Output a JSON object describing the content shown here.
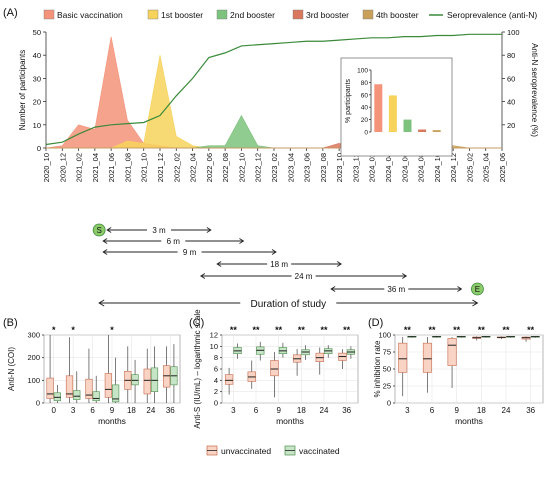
{
  "chart_data": [
    {
      "panel": "(A)",
      "type": "area",
      "legend": [
        {
          "name": "Basic vaccination",
          "color": "#F4937A"
        },
        {
          "name": "1st booster",
          "color": "#F7D35C"
        },
        {
          "name": "2nd booster",
          "color": "#7DC27D"
        },
        {
          "name": "3rd booster",
          "color": "#D9785E"
        },
        {
          "name": "4th booster",
          "color": "#C8A05A"
        },
        {
          "name": "Seroprevalence (anti-N)",
          "color": "#3A8A3A"
        }
      ],
      "ylabel": "Number of participants",
      "y2label": "Anti-N seroprevalence (%)",
      "ylim": [
        0,
        50
      ],
      "y2lim": [
        0,
        100
      ],
      "yticks": [
        "0",
        "10",
        "20",
        "30",
        "40",
        "50"
      ],
      "y2ticks": [
        "20",
        "40",
        "60",
        "80",
        "100"
      ],
      "x": [
        "2020_10",
        "2020_12",
        "2021_02",
        "2021_04",
        "2021_06",
        "2021_08",
        "2021_10",
        "2021_12",
        "2022_02",
        "2022_04",
        "2022_06",
        "2022_08",
        "2022_10",
        "2022_12",
        "2023_02",
        "2023_04",
        "2023_06",
        "2023_08",
        "2023_10",
        "2023_12",
        "2024_02",
        "2024_04",
        "2024_06",
        "2024_08",
        "2024_10",
        "2024_12",
        "2025_02",
        "2025_04",
        "2025_06"
      ],
      "series": [
        {
          "name": "Basic vaccination",
          "values": [
            0,
            1,
            10,
            8,
            48,
            12,
            2,
            1,
            0,
            0,
            0,
            0,
            0,
            0,
            0,
            0,
            0,
            0,
            0,
            0,
            0,
            0,
            0,
            0,
            0,
            0,
            0,
            0,
            0
          ]
        },
        {
          "name": "1st booster",
          "values": [
            0,
            0,
            0,
            0,
            0,
            3,
            2,
            40,
            5,
            1,
            0,
            0,
            0,
            0,
            0,
            0,
            0,
            0,
            0,
            0,
            0,
            0,
            0,
            0,
            0,
            0,
            0,
            0,
            0
          ]
        },
        {
          "name": "2nd booster",
          "values": [
            0,
            0,
            0,
            0,
            0,
            0,
            0,
            0,
            0,
            0,
            1,
            1,
            14,
            1,
            0,
            0,
            0,
            0,
            0,
            0,
            0,
            0,
            0,
            0,
            0,
            0,
            0,
            0,
            0
          ]
        },
        {
          "name": "3rd booster",
          "values": [
            0,
            0,
            0,
            0,
            0,
            0,
            0,
            0,
            0,
            0,
            0,
            0,
            0,
            0,
            0,
            0,
            0,
            0,
            2,
            0,
            0,
            0,
            0,
            0,
            0,
            0,
            0,
            0,
            0
          ]
        },
        {
          "name": "4th booster",
          "values": [
            0,
            0,
            0,
            0,
            0,
            0,
            0,
            0,
            0,
            0,
            0,
            0,
            0,
            0,
            0,
            0,
            0,
            0,
            0,
            0,
            0,
            0,
            0,
            0,
            1,
            1,
            0,
            0,
            0
          ]
        },
        {
          "name": "Seroprevalence (anti-N)",
          "axis": "right",
          "values": [
            3,
            5,
            12,
            18,
            20,
            21,
            22,
            28,
            45,
            60,
            78,
            82,
            88,
            89,
            90,
            91,
            92,
            92,
            93,
            94,
            95,
            95,
            96,
            96,
            97,
            97,
            98,
            98,
            98
          ]
        }
      ],
      "inset": {
        "ylabel": "% participants",
        "yticks": [
          "0",
          "20",
          "40",
          "60",
          "80",
          "100"
        ],
        "ylim": [
          0,
          100
        ],
        "values": [
          77,
          59,
          20,
          4,
          3
        ],
        "colors": [
          "#F4937A",
          "#F7D35C",
          "#7DC27D",
          "#D9785E",
          "#C8A05A"
        ]
      },
      "timeline": {
        "start_label": "S",
        "end_label": "E",
        "intervals": [
          "3 m",
          "6 m",
          "9 m",
          "18 m",
          "24 m",
          "36 m"
        ],
        "study_label": "Duration of study"
      }
    },
    {
      "panel": "(B)",
      "type": "box",
      "ylabel": "Anti-N (COI)",
      "xlabel": "months",
      "categories": [
        "0",
        "3",
        "6",
        "9",
        "18",
        "24",
        "36"
      ],
      "ylim": [
        0,
        300
      ],
      "yticks": [
        "0",
        "100",
        "200",
        "300"
      ],
      "significance": [
        "*",
        "*",
        "",
        "*",
        "",
        "",
        ""
      ],
      "series": [
        {
          "name": "unvaccinated",
          "boxes": [
            [
              0,
              20,
              40,
              110,
              310
            ],
            [
              0,
              25,
              40,
              120,
              290
            ],
            [
              0,
              20,
              35,
              105,
              240
            ],
            [
              0,
              25,
              60,
              130,
              310
            ],
            [
              0,
              60,
              100,
              140,
              250
            ],
            [
              0,
              40,
              100,
              150,
              240
            ],
            [
              0,
              70,
              120,
              165,
              250
            ]
          ]
        },
        {
          "name": "vaccinated",
          "boxes": [
            [
              0,
              10,
              25,
              45,
              80
            ],
            [
              0,
              15,
              30,
              55,
              140
            ],
            [
              0,
              10,
              20,
              50,
              120
            ],
            [
              0,
              5,
              18,
              80,
              200
            ],
            [
              0,
              80,
              100,
              125,
              190
            ],
            [
              0,
              50,
              100,
              155,
              250
            ],
            [
              0,
              80,
              120,
              160,
              260
            ]
          ]
        }
      ]
    },
    {
      "panel": "(C)",
      "type": "box",
      "ylabel": "Anti-S (IU/mL) – logarithmic scale",
      "xlabel": "months",
      "categories": [
        "3",
        "6",
        "9",
        "18",
        "24",
        "36"
      ],
      "ylim": [
        0,
        12
      ],
      "yticks": [
        "0",
        "2",
        "4",
        "6",
        "8",
        "10",
        "12"
      ],
      "significance": [
        "**",
        "**",
        "**",
        "**",
        "**",
        "**"
      ],
      "series": [
        {
          "name": "unvaccinated",
          "boxes": [
            [
              1.5,
              3.3,
              4.0,
              5.0,
              6.2
            ],
            [
              2.5,
              3.8,
              4.6,
              5.5,
              7.5
            ],
            [
              1.0,
              4.8,
              6.0,
              7.5,
              9.0
            ],
            [
              4.8,
              7.2,
              7.8,
              8.5,
              9.5
            ],
            [
              5.0,
              7.3,
              8.0,
              8.8,
              9.8
            ],
            [
              6.0,
              7.5,
              8.2,
              8.8,
              9.5
            ]
          ]
        },
        {
          "name": "vaccinated",
          "boxes": [
            [
              7.8,
              8.7,
              9.2,
              9.8,
              10.5
            ],
            [
              7.5,
              8.6,
              9.3,
              9.9,
              10.8
            ],
            [
              8.0,
              8.7,
              9.2,
              9.8,
              10.6
            ],
            [
              7.6,
              8.5,
              9.0,
              9.4,
              10.2
            ],
            [
              8.0,
              8.7,
              9.2,
              9.6,
              10.2
            ],
            [
              7.8,
              8.6,
              9.0,
              9.4,
              10.0
            ]
          ]
        }
      ]
    },
    {
      "panel": "(D)",
      "type": "box",
      "ylabel": "% inhibition rate",
      "xlabel": "months",
      "categories": [
        "3",
        "6",
        "9",
        "18",
        "24",
        "36"
      ],
      "ylim": [
        0,
        100
      ],
      "yticks": [
        "0",
        "25",
        "50",
        "75",
        "100"
      ],
      "significance": [
        "**",
        "**",
        "**",
        "**",
        "**",
        "**"
      ],
      "series": [
        {
          "name": "unvaccinated",
          "boxes": [
            [
              10,
              45,
              65,
              88,
              97
            ],
            [
              15,
              45,
              65,
              88,
              97
            ],
            [
              22,
              55,
              85,
              95,
              97
            ],
            [
              92,
              95,
              96,
              97,
              98
            ],
            [
              94,
              96,
              96.5,
              97,
              98
            ],
            [
              90,
              94,
              96,
              97,
              98
            ]
          ]
        },
        {
          "name": "vaccinated",
          "boxes": [
            [
              96,
              97,
              97.5,
              98,
              98.5
            ],
            [
              96,
              97,
              97.5,
              98,
              98.5
            ],
            [
              96,
              97,
              97.5,
              98,
              98.5
            ],
            [
              96,
              97,
              97.5,
              98,
              98.5
            ],
            [
              96,
              97,
              97.5,
              98,
              98.5
            ],
            [
              96,
              97,
              97.5,
              98,
              98.5
            ]
          ]
        }
      ]
    }
  ],
  "box_legend": {
    "items": [
      {
        "name": "unvaccinated",
        "fill": "#F9D3C3",
        "stroke": "#C66B4F"
      },
      {
        "name": "vaccinated",
        "fill": "#C6E4C6",
        "stroke": "#4E8F4E"
      }
    ]
  }
}
